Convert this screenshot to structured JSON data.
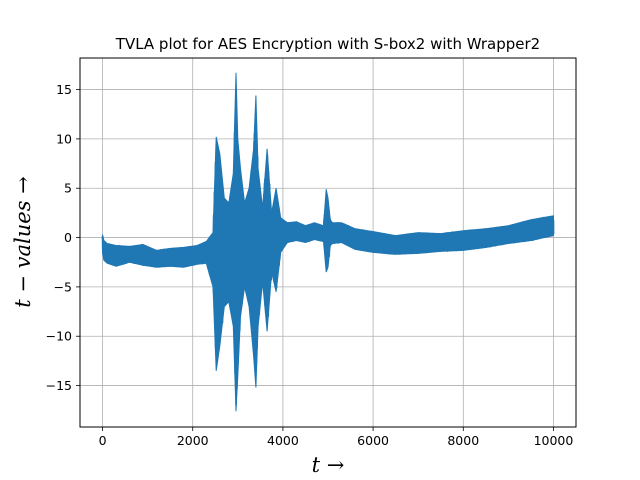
{
  "chart_data": {
    "type": "line",
    "title": "TVLA plot for AES Encryption with S-box2 with Wrapper2",
    "xlabel": "t →",
    "ylabel": "t − values →",
    "xlim": [
      -500,
      10500
    ],
    "ylim": [
      -19.2,
      18.2
    ],
    "xticks": [
      0,
      2000,
      4000,
      6000,
      8000,
      10000
    ],
    "yticks": [
      -15,
      -10,
      -5,
      0,
      5,
      10,
      15
    ],
    "grid": true,
    "legend": "none",
    "series": [
      {
        "color": "#1f77b4",
        "envelope": {
          "x": [
            0,
            30,
            100,
            300,
            600,
            900,
            1200,
            1500,
            1800,
            2100,
            2300,
            2450,
            2520,
            2600,
            2700,
            2800,
            2900,
            2960,
            3000,
            3060,
            3150,
            3250,
            3350,
            3400,
            3450,
            3550,
            3650,
            3750,
            3850,
            3950,
            4100,
            4300,
            4500,
            4700,
            4900,
            4960,
            5000,
            5050,
            5100,
            5300,
            5600,
            6000,
            6500,
            7000,
            7500,
            8000,
            8500,
            9000,
            9500,
            10000
          ],
          "upper": [
            0.3,
            -0.3,
            -0.6,
            -0.8,
            -0.9,
            -0.7,
            -1.3,
            -1.1,
            -1.0,
            -0.8,
            -0.4,
            0.5,
            10.2,
            8.5,
            4.0,
            3.5,
            6.5,
            16.7,
            10.0,
            7.0,
            3.5,
            5.0,
            9.0,
            14.4,
            7.0,
            3.0,
            9.0,
            2.5,
            5.0,
            2.0,
            1.5,
            1.6,
            1.2,
            1.5,
            1.2,
            4.9,
            4.0,
            1.8,
            1.5,
            1.5,
            0.9,
            0.6,
            0.2,
            0.5,
            0.4,
            0.7,
            0.9,
            1.2,
            1.8,
            2.2
          ],
          "lower": [
            -1.5,
            -2.3,
            -2.6,
            -2.9,
            -2.5,
            -2.8,
            -3.0,
            -2.9,
            -3.0,
            -2.7,
            -2.6,
            -5.0,
            -13.5,
            -11.0,
            -7.0,
            -6.5,
            -9.0,
            -17.6,
            -14.0,
            -8.0,
            -5.0,
            -7.0,
            -12.0,
            -15.2,
            -9.0,
            -4.5,
            -9.5,
            -3.5,
            -5.5,
            -1.5,
            -0.5,
            -0.3,
            -0.5,
            -0.2,
            -0.4,
            -3.5,
            -3.0,
            -0.8,
            -0.6,
            -0.5,
            -1.2,
            -1.5,
            -1.7,
            -1.6,
            -1.4,
            -1.3,
            -1.0,
            -0.6,
            -0.3,
            0.2
          ]
        }
      }
    ]
  }
}
